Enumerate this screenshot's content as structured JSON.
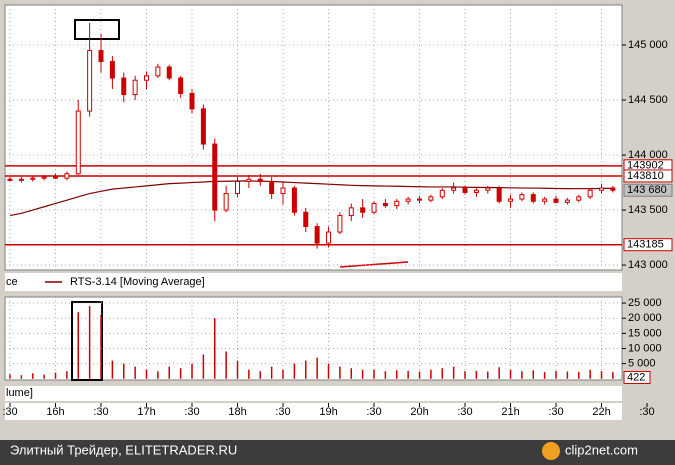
{
  "chart_data": {
    "type": "candlestick",
    "x": [
      15.5,
      15.625,
      15.75,
      15.875,
      16.0,
      16.125,
      16.25,
      16.375,
      16.5,
      16.625,
      16.75,
      16.875,
      17.0,
      17.125,
      17.25,
      17.375,
      17.5,
      17.625,
      17.75,
      17.875,
      18.0,
      18.125,
      18.25,
      18.375,
      18.5,
      18.625,
      18.75,
      18.875,
      19.0,
      19.125,
      19.25,
      19.375,
      19.5,
      19.625,
      19.75,
      19.875,
      20.0,
      20.125,
      20.25,
      20.375,
      20.5,
      20.625,
      20.75,
      20.875,
      21.0,
      21.125,
      21.25,
      21.375,
      21.5,
      21.625,
      21.75,
      21.875,
      22.0,
      22.125
    ],
    "open": [
      143780,
      143770,
      143780,
      143790,
      143800,
      143790,
      143830,
      144400,
      144950,
      144850,
      144700,
      144550,
      144680,
      144720,
      144800,
      144700,
      144560,
      144420,
      144100,
      143500,
      143650,
      143760,
      143780,
      143760,
      143650,
      143700,
      143480,
      143350,
      143200,
      143300,
      143450,
      143520,
      143480,
      143560,
      143540,
      143580,
      143600,
      143590,
      143620,
      143680,
      143700,
      143660,
      143680,
      143700,
      143580,
      143600,
      143640,
      143580,
      143600,
      143570,
      143590,
      143620,
      143680,
      143700
    ],
    "high": [
      143800,
      143800,
      143810,
      143820,
      143830,
      143850,
      144500,
      145200,
      145100,
      144900,
      144750,
      144720,
      144760,
      144830,
      144820,
      144720,
      144600,
      144460,
      144150,
      143720,
      143800,
      143820,
      143830,
      143800,
      143750,
      143720,
      143520,
      143380,
      143350,
      143480,
      143560,
      143600,
      143580,
      143600,
      143600,
      143620,
      143630,
      143640,
      143700,
      143750,
      143720,
      143700,
      143720,
      143720,
      143640,
      143660,
      143660,
      143620,
      143630,
      143610,
      143640,
      143700,
      143740,
      143720
    ],
    "low": [
      143760,
      143750,
      143760,
      143770,
      143780,
      143770,
      143820,
      144350,
      144750,
      144600,
      144480,
      144500,
      144600,
      144700,
      144680,
      144520,
      144380,
      144050,
      143400,
      143480,
      143620,
      143700,
      143720,
      143600,
      143550,
      143450,
      143300,
      143150,
      143160,
      143280,
      143400,
      143430,
      143460,
      143520,
      143510,
      143550,
      143560,
      143570,
      143600,
      143650,
      143640,
      143620,
      143650,
      143560,
      143520,
      143580,
      143560,
      143550,
      143560,
      143550,
      143570,
      143600,
      143650,
      143660
    ],
    "close": [
      143770,
      143780,
      143790,
      143800,
      143790,
      143830,
      144400,
      144950,
      144850,
      144700,
      144550,
      144680,
      144720,
      144800,
      144700,
      144560,
      144420,
      144100,
      143500,
      143650,
      143760,
      143780,
      143760,
      143650,
      143700,
      143480,
      143350,
      143200,
      143300,
      143450,
      143520,
      143480,
      143560,
      143540,
      143580,
      143600,
      143590,
      143620,
      143680,
      143700,
      143660,
      143680,
      143700,
      143580,
      143600,
      143640,
      143580,
      143600,
      143570,
      143590,
      143620,
      143680,
      143700,
      143680
    ],
    "moving_average": [
      143450,
      143470,
      143500,
      143530,
      143560,
      143590,
      143620,
      143650,
      143670,
      143690,
      143700,
      143710,
      143720,
      143730,
      143740,
      143745,
      143750,
      143755,
      143760,
      143762,
      143764,
      143765,
      143762,
      143760,
      143755,
      143750,
      143745,
      143740,
      143735,
      143730,
      143725,
      143722,
      143720,
      143718,
      143716,
      143714,
      143712,
      143710,
      143710,
      143710,
      143708,
      143706,
      143705,
      143704,
      143702,
      143700,
      143700,
      143698,
      143696,
      143695,
      143694,
      143695,
      143696,
      143698
    ],
    "volume": [
      1500,
      1200,
      1800,
      1400,
      2000,
      2500,
      22000,
      24000,
      21000,
      6000,
      5000,
      4000,
      3000,
      2500,
      4000,
      3500,
      5000,
      8000,
      20000,
      9000,
      6000,
      3000,
      2500,
      4000,
      3000,
      5000,
      6000,
      7000,
      5000,
      4000,
      3500,
      3000,
      3000,
      2500,
      2800,
      2600,
      2400,
      3000,
      3500,
      4000,
      2500,
      2600,
      2400,
      3800,
      3000,
      2500,
      2800,
      2200,
      2600,
      2400,
      2300,
      3000,
      2500,
      2200
    ],
    "color": "#cc0000",
    "ma_color": "#800000",
    "ylim": [
      142955,
      145364
    ],
    "yticks": [
      {
        "value": 143000,
        "label": "143 000"
      },
      {
        "value": 143500,
        "label": "143 500"
      },
      {
        "value": 144000,
        "label": "144 000"
      },
      {
        "value": 144500,
        "label": "144 500"
      },
      {
        "value": 145000,
        "label": "145 000"
      }
    ],
    "levels": [
      143902,
      143810,
      143185
    ],
    "current_price": {
      "value": 143680,
      "label": "143 680"
    },
    "volume_ylim": [
      -400,
      27000
    ],
    "volume_yticks": [
      {
        "value": 5000,
        "label": "5 000"
      },
      {
        "value": 10000,
        "label": "10 000"
      },
      {
        "value": 15000,
        "label": "15 000"
      },
      {
        "value": 20000,
        "label": "20 000"
      },
      {
        "value": 25000,
        "label": "25 000"
      }
    ],
    "current_volume": 422,
    "xlim": [
      15.445,
      22.225
    ],
    "xticks": [
      {
        "value": 15.5,
        "label": ":30"
      },
      {
        "value": 16,
        "label": "16h"
      },
      {
        "value": 16.5,
        "label": ":30"
      },
      {
        "value": 17,
        "label": "17h"
      },
      {
        "value": 17.5,
        "label": ":30"
      },
      {
        "value": 18,
        "label": "18h"
      },
      {
        "value": 18.5,
        "label": ":30"
      },
      {
        "value": 19,
        "label": "19h"
      },
      {
        "value": 19.5,
        "label": ":30"
      },
      {
        "value": 20,
        "label": "20h"
      },
      {
        "value": 20.5,
        "label": ":30"
      },
      {
        "value": 21,
        "label": "21h"
      },
      {
        "value": 21.5,
        "label": ":30"
      },
      {
        "value": 22,
        "label": "22h"
      },
      {
        "value": 22.5,
        "label": ":30"
      }
    ],
    "grid": true,
    "price_legend": "ce",
    "ma_legend": "RTS-3.14 [Moving Average]",
    "volume_legend": "lume]"
  },
  "footer": {
    "left": "Элитный Трейдер, ELITETRADER.RU",
    "right": "clip2net.com"
  }
}
